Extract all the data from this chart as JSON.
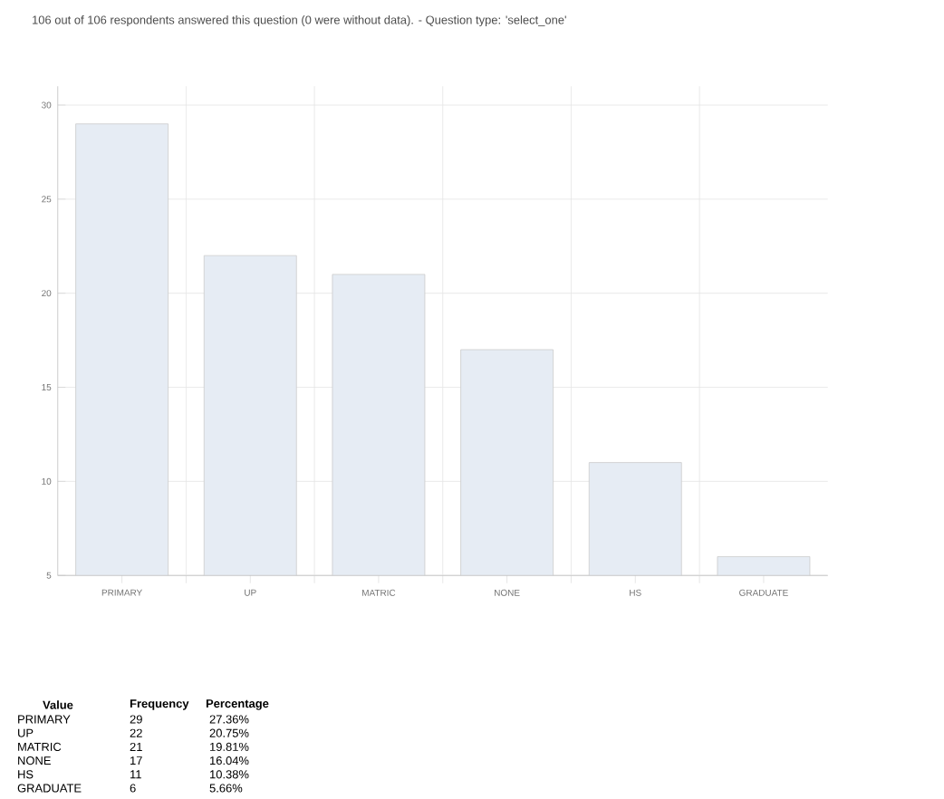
{
  "chart_data": {
    "type": "bar",
    "title": "106 out of 106 respondents answered this question (0 were without data). - Question type: 'select_one'",
    "categories": [
      "PRIMARY",
      "UP",
      "MATRIC",
      "NONE",
      "HS",
      "GRADUATE"
    ],
    "values": [
      29,
      22,
      21,
      17,
      11,
      6
    ],
    "color": "#e6ecf4",
    "ylim": [
      5,
      31
    ],
    "yticks": [
      5,
      10,
      15,
      20,
      25,
      30
    ],
    "grid": true,
    "annotations": [
      "Value",
      "Frequency",
      "Percentage",
      "27.36%",
      "20.75%",
      "19.81%",
      "16.04%",
      "10.38%",
      "5.66%",
      "29",
      "22",
      "21",
      "17",
      "11",
      "6"
    ]
  }
}
